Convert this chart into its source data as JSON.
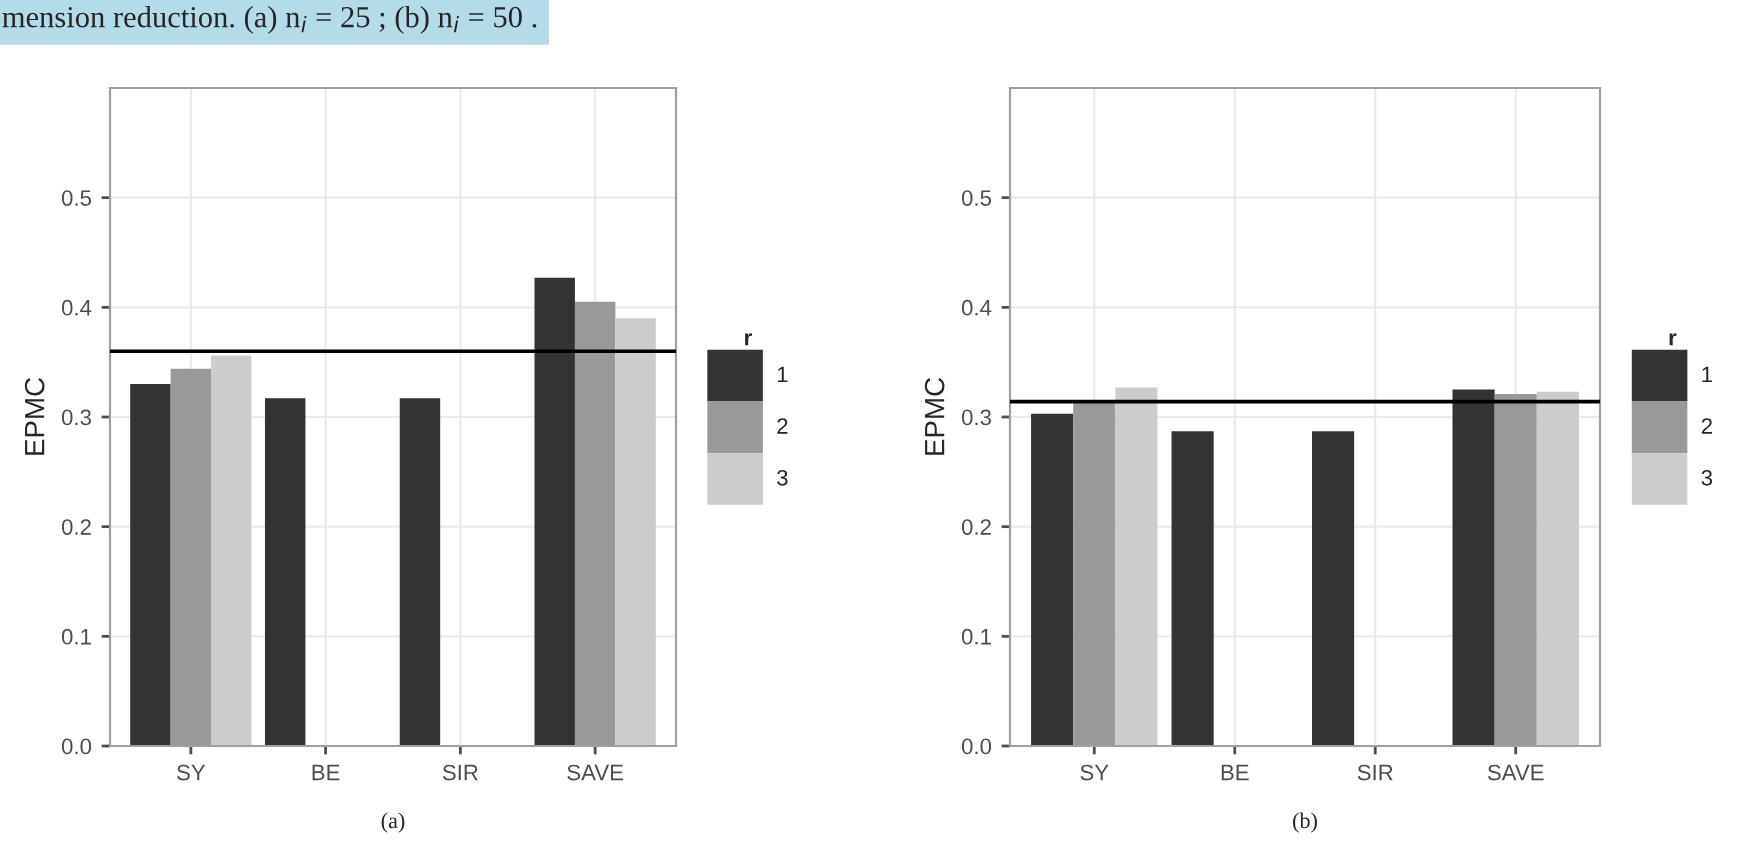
{
  "chart_data": [
    {
      "type": "bar",
      "xlabel": "(a)",
      "ylabel": "EPMC",
      "legend_title": "r",
      "legend": "right",
      "grid": true,
      "annotations": [
        "mension reduction. (a) n$_{i}$ = 25 ; (b) n$_{i}$ = 50 ."
      ],
      "categories": [
        "SY",
        "BE",
        "SIR",
        "SAVE"
      ],
      "series": [
        {
          "name": "1",
          "color": "#333333",
          "values": [
            0.33,
            0.317,
            0.317,
            0.427
          ]
        },
        {
          "name": "2",
          "color": "#999999",
          "values": [
            0.344,
            null,
            null,
            0.405
          ]
        },
        {
          "name": "3",
          "color": "#cccccc",
          "values": [
            0.356,
            null,
            null,
            0.39
          ]
        }
      ],
      "ylim": [
        0,
        0.6
      ],
      "yticks": [
        {
          "value": 0,
          "label": "0.0"
        },
        0.1,
        0.2,
        0.3,
        0.4,
        0.5
      ],
      "ref_lines": [
        {
          "axis": "y",
          "value": 0.36,
          "color": "#000000"
        }
      ]
    },
    {
      "type": "bar",
      "xlabel": "(b)",
      "ylabel": "EPMC",
      "legend_title": "r",
      "legend": "right",
      "grid": true,
      "categories": [
        "SY",
        "BE",
        "SIR",
        "SAVE"
      ],
      "series": [
        {
          "name": "1",
          "color": "#333333",
          "values": [
            0.303,
            0.287,
            0.287,
            0.325
          ]
        },
        {
          "name": "2",
          "color": "#999999",
          "values": [
            0.315,
            null,
            null,
            0.321
          ]
        },
        {
          "name": "3",
          "color": "#cccccc",
          "values": [
            0.327,
            null,
            null,
            0.323
          ]
        }
      ],
      "ylim": [
        0,
        0.6
      ],
      "yticks": [
        {
          "value": 0,
          "label": "0.0"
        },
        0.1,
        0.2,
        0.3,
        0.4,
        0.5
      ],
      "ref_lines": [
        {
          "axis": "y",
          "value": 0.314,
          "color": "#000000"
        }
      ]
    }
  ]
}
